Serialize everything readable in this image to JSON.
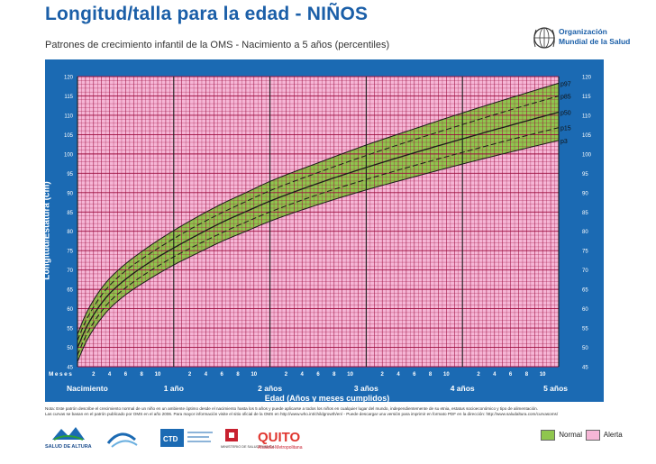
{
  "header": {
    "title": "Longitud/talla para la edad - NIÑOS",
    "subtitle": "Patrones de crecimiento infantil de la OMS - Nacimiento a 5 años (percentiles)",
    "who_line1": "Organización",
    "who_line2": "Mundial de la Salud"
  },
  "colors": {
    "panel": "#1b6ab3",
    "normal": "#8fc64e",
    "alerta": "#f6b6d6",
    "grid": "#9c0d3e",
    "curve": "#1a1a1a"
  },
  "chart_data": {
    "type": "line",
    "title": "Longitud/talla para la edad - NIÑOS",
    "xlabel": "Edad (Años y meses cumplidos)",
    "ylabel": "Longitud/Estatura (cm)",
    "xlim": [
      0,
      60
    ],
    "ylim": [
      45,
      120
    ],
    "x_unit": "months",
    "yticks": [
      45,
      50,
      55,
      60,
      65,
      70,
      75,
      80,
      85,
      90,
      95,
      100,
      105,
      110,
      115,
      120
    ],
    "grid": true,
    "x_prefix_label": "Meses",
    "month_ticks": [
      {
        "month": 2,
        "label": "2"
      },
      {
        "month": 4,
        "label": "4"
      },
      {
        "month": 6,
        "label": "6"
      },
      {
        "month": 8,
        "label": "8"
      },
      {
        "month": 10,
        "label": "10"
      },
      {
        "month": 14,
        "label": "2"
      },
      {
        "month": 16,
        "label": "4"
      },
      {
        "month": 18,
        "label": "6"
      },
      {
        "month": 20,
        "label": "8"
      },
      {
        "month": 22,
        "label": "10"
      },
      {
        "month": 26,
        "label": "2"
      },
      {
        "month": 28,
        "label": "4"
      },
      {
        "month": 30,
        "label": "6"
      },
      {
        "month": 32,
        "label": "8"
      },
      {
        "month": 34,
        "label": "10"
      },
      {
        "month": 38,
        "label": "2"
      },
      {
        "month": 40,
        "label": "4"
      },
      {
        "month": 42,
        "label": "6"
      },
      {
        "month": 44,
        "label": "8"
      },
      {
        "month": 46,
        "label": "10"
      },
      {
        "month": 50,
        "label": "2"
      },
      {
        "month": 52,
        "label": "4"
      },
      {
        "month": 54,
        "label": "6"
      },
      {
        "month": 56,
        "label": "8"
      },
      {
        "month": 58,
        "label": "10"
      }
    ],
    "year_ticks": [
      {
        "month": 0,
        "label": "Nacimiento"
      },
      {
        "month": 12,
        "label": "1 año"
      },
      {
        "month": 24,
        "label": "2 años"
      },
      {
        "month": 36,
        "label": "3 años"
      },
      {
        "month": 48,
        "label": "4 años"
      },
      {
        "month": 60,
        "label": "5 años"
      }
    ],
    "x": [
      0,
      1,
      2,
      3,
      4,
      6,
      9,
      12,
      15,
      18,
      21,
      24,
      30,
      36,
      42,
      48,
      54,
      60
    ],
    "series": [
      {
        "name": "p97",
        "values": [
          53.4,
          58.4,
          62.2,
          65.3,
          67.8,
          71.6,
          76.2,
          80.2,
          83.8,
          87.1,
          90.0,
          92.9,
          97.7,
          102.3,
          106.5,
          110.6,
          114.5,
          118.3
        ]
      },
      {
        "name": "p85",
        "values": [
          51.8,
          56.7,
          60.4,
          63.5,
          66.0,
          69.8,
          74.2,
          78.1,
          81.6,
          84.8,
          87.7,
          90.5,
          95.2,
          99.6,
          103.7,
          107.6,
          111.4,
          115.0
        ]
      },
      {
        "name": "p50",
        "values": [
          49.9,
          54.7,
          58.4,
          61.4,
          63.9,
          67.6,
          72.0,
          75.7,
          79.1,
          82.3,
          85.1,
          87.8,
          92.4,
          96.5,
          100.3,
          103.9,
          107.4,
          110.8
        ]
      },
      {
        "name": "p15",
        "values": [
          48.0,
          52.8,
          56.4,
          59.3,
          61.8,
          65.4,
          69.7,
          73.4,
          76.6,
          79.6,
          82.4,
          85.0,
          89.5,
          93.4,
          97.0,
          100.4,
          103.7,
          106.8
        ]
      },
      {
        "name": "p3",
        "values": [
          46.3,
          51.1,
          54.7,
          57.6,
          60.0,
          63.6,
          67.7,
          71.3,
          74.4,
          77.4,
          80.0,
          82.6,
          86.9,
          90.7,
          94.1,
          97.4,
          100.5,
          103.5
        ]
      }
    ]
  },
  "note": {
    "line1": "Nota: Este patrón describe el crecimiento normal de un niño en un ambiente óptimo desde el nacimiento hasta los 5 años y puede aplicarse a todos los niños en cualquier lugar del mundo, independientemente de su etnia, estatus socioeconómico y tipo de alimentación.",
    "line2": "Las curvas se basan en el patrón publicado por OMS en el año 2006. Para mayor información visite el sitio oficial de la OMS en http://www.who.int/childgrowth/en/ - Puede descargar una versión para imprimir en formato PDF en la dirección: http://www.saludaltura.com/curvasoms/"
  },
  "legend": {
    "normal": "Normal",
    "alerta": "Alerta"
  },
  "logos": {
    "salud_altura": "SALUD DE ALTURA",
    "ctd": "CTD",
    "quito": "QUITO",
    "quito_sub": "Alcaldía Metropolitana",
    "ministerio": "MINISTERIO DE SALUD PÚBLICA"
  }
}
